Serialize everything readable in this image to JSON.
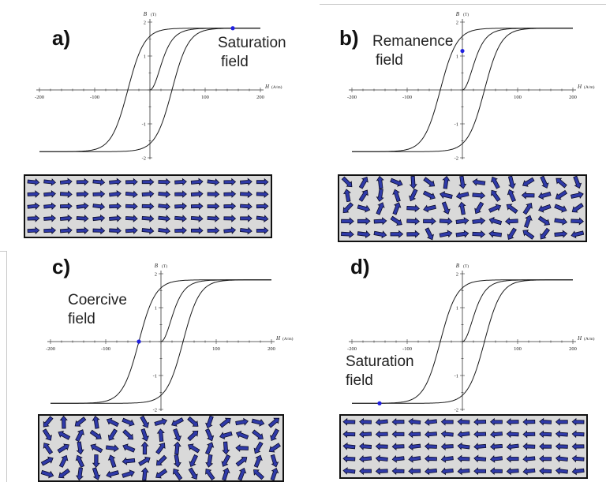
{
  "axes": {
    "h_label": "H",
    "h_unit": "(A/m)",
    "b_label": "B",
    "b_unit": "(T)",
    "h_ticks": [
      "-200",
      "-100",
      "100",
      "200"
    ],
    "b_ticks": [
      "2",
      "1",
      "-1",
      "-2"
    ]
  },
  "panels": [
    {
      "label": "a)",
      "annotation_lines": [
        "Saturation",
        "field"
      ],
      "marker": {
        "H": 150,
        "B": 1.82
      },
      "arrow_state": "aligned-right",
      "arrow_color": "#2f3aa8"
    },
    {
      "label": "b)",
      "annotation_lines": [
        "Remanence",
        "field"
      ],
      "marker": {
        "H": 0,
        "B": 1.15
      },
      "arrow_state": "mostly-random",
      "arrow_color": "#2f3aa8"
    },
    {
      "label": "c)",
      "annotation_lines": [
        "Coercive",
        "field"
      ],
      "marker": {
        "H": -40,
        "B": 0
      },
      "arrow_state": "random",
      "arrow_color": "#2f3aa8"
    },
    {
      "label": "d)",
      "annotation_lines": [
        "Saturation",
        "field"
      ],
      "marker": {
        "H": -150,
        "B": -1.82
      },
      "arrow_state": "aligned-left",
      "arrow_color": "#2f3aa8"
    }
  ],
  "colors": {
    "curve": "#1a1a1a",
    "marker": "#2020e0",
    "arrow": "#2f3aa8",
    "arrow_outline": "#0b0b2a",
    "box_fill": "#d9d9d9"
  }
}
